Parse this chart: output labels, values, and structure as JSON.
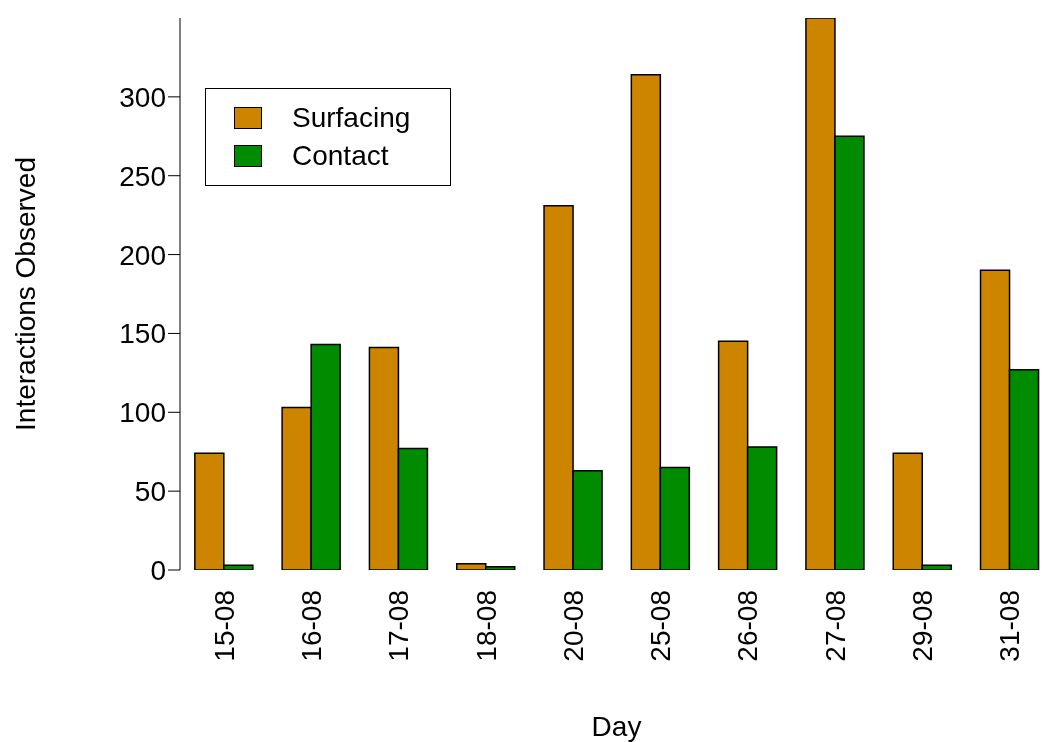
{
  "chart_data": {
    "type": "bar",
    "xlabel": "Day",
    "ylabel": "Interactions Observed",
    "categories": [
      "15-08",
      "16-08",
      "17-08",
      "18-08",
      "20-08",
      "25-08",
      "26-08",
      "27-08",
      "29-08",
      "31-08"
    ],
    "series": [
      {
        "name": "Surfacing",
        "color": "#cd8500",
        "values": [
          74,
          103,
          141,
          4,
          231,
          314,
          145,
          350,
          74,
          190
        ]
      },
      {
        "name": "Contact",
        "color": "#008b00",
        "values": [
          3,
          143,
          77,
          2,
          63,
          65,
          78,
          275,
          3,
          127
        ]
      }
    ],
    "ylim": [
      0,
      350
    ],
    "yticks": [
      0,
      50,
      100,
      150,
      200,
      250,
      300
    ],
    "grid": false,
    "legend": "top left"
  }
}
